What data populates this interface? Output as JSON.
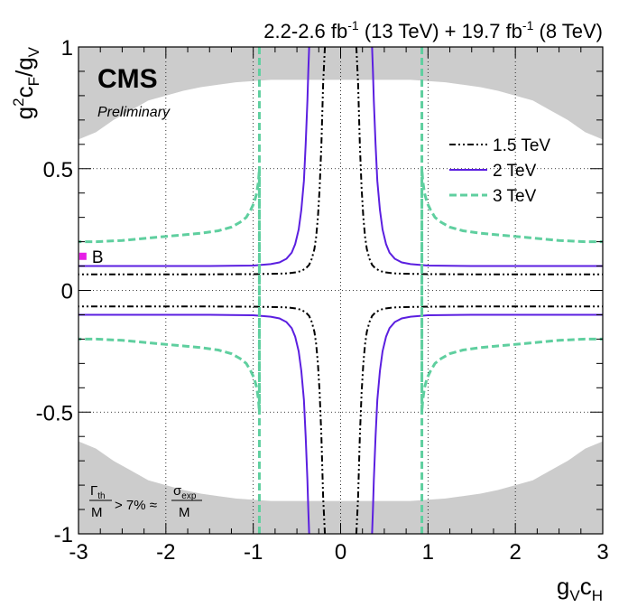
{
  "chart_data": {
    "type": "line",
    "title": "2.2-2.6 fb-1 (13 TeV) + 19.7 fb-1 (8 TeV)",
    "title_parts": {
      "lumi1": "2.2-2.6 fb",
      "exp1": "-1",
      "energy1": " (13 TeV) + 19.7 fb",
      "exp2": "-1",
      "energy2": " (8 TeV)"
    },
    "experiment": "CMS",
    "status": "Preliminary",
    "xlabel": "gVcH",
    "xlabel_parts": {
      "a": "g",
      "a_sub": "V",
      "b": "c",
      "b_sub": "H"
    },
    "ylabel": "g2cF/gV",
    "ylabel_parts": {
      "a": "g",
      "a_sup": "2",
      "b": "c",
      "b_sub": "F",
      "c": "/g",
      "c_sub": "V"
    },
    "xlim": [
      -3,
      3
    ],
    "ylim": [
      -1,
      1
    ],
    "x_ticks": [
      "-3",
      "-2",
      "-1",
      "0",
      "1",
      "2",
      "3"
    ],
    "y_ticks": [
      "-1",
      "-0.5",
      "0",
      "0.5",
      "1"
    ],
    "grid": true,
    "legend_position": "top-right",
    "series": [
      {
        "name": "1.5 TeV",
        "color": "#000000",
        "style": "dash-dot",
        "x_pos": [
          0.18,
          0.2,
          0.22,
          0.24,
          0.26,
          0.28,
          0.3,
          0.33,
          0.36,
          0.4,
          0.45,
          0.5,
          0.6,
          0.8,
          1.0,
          1.5,
          2.0,
          2.5,
          3.0
        ],
        "y_pos": [
          1.0,
          0.85,
          0.6,
          0.42,
          0.3,
          0.22,
          0.17,
          0.13,
          0.105,
          0.09,
          0.08,
          0.075,
          0.07,
          0.068,
          0.067,
          0.066,
          0.066,
          0.066,
          0.066
        ]
      },
      {
        "name": "2 TeV",
        "color": "#5b1fe0",
        "style": "solid",
        "x_pos": [
          0.36,
          0.37,
          0.38,
          0.4,
          0.42,
          0.45,
          0.48,
          0.52,
          0.56,
          0.62,
          0.7,
          0.8,
          1.0,
          1.5,
          2.0,
          2.5,
          3.0
        ],
        "y_pos": [
          1.0,
          0.9,
          0.78,
          0.6,
          0.45,
          0.33,
          0.25,
          0.19,
          0.155,
          0.13,
          0.115,
          0.108,
          0.102,
          0.1,
          0.1,
          0.1,
          0.1
        ]
      },
      {
        "name": "3 TeV",
        "color": "#5fcf9f",
        "style": "dashed",
        "x_pos": [
          0.93,
          0.93,
          0.94,
          0.96,
          0.99,
          1.03,
          1.08,
          1.15,
          1.25,
          1.4,
          1.6,
          1.9,
          2.2,
          2.5,
          2.8,
          3.0
        ],
        "y_pos": [
          -1.0,
          0.5,
          0.45,
          0.4,
          0.36,
          0.33,
          0.3,
          0.28,
          0.26,
          0.245,
          0.235,
          0.225,
          0.215,
          0.205,
          0.2,
          0.2
        ]
      }
    ],
    "symmetry_note": "",
    "excluded_region": {
      "label": "",
      "color": "#cccccc",
      "top_x": [
        -3.0,
        -2.8,
        -2.6,
        -2.4,
        -2.2,
        -2.0,
        -1.8,
        -1.6,
        -1.4,
        -1.2,
        -1.0,
        -0.8,
        -0.6,
        -0.4,
        -0.2,
        0.0,
        0.2,
        0.4,
        0.6,
        0.8,
        1.0,
        1.2,
        1.4,
        1.6,
        1.8,
        2.0,
        2.2,
        2.4,
        2.6,
        2.8,
        3.0
      ],
      "top_y": [
        0.62,
        0.65,
        0.7,
        0.74,
        0.78,
        0.8,
        0.82,
        0.835,
        0.845,
        0.855,
        0.86,
        0.865,
        0.865,
        0.865,
        0.865,
        0.865,
        0.865,
        0.865,
        0.865,
        0.865,
        0.86,
        0.855,
        0.845,
        0.835,
        0.82,
        0.8,
        0.78,
        0.74,
        0.7,
        0.65,
        0.62
      ]
    },
    "benchmark": {
      "label": "B",
      "x": -2.95,
      "y": 0.14,
      "color": "#e61ee6"
    },
    "annotation": {
      "g_num": "Γ",
      "g_num_sub": "th",
      "g_den": "M",
      "middle": "> 7% ≈",
      "s_num": "σ",
      "s_num_sub": "exp",
      "s_den": "M"
    }
  }
}
